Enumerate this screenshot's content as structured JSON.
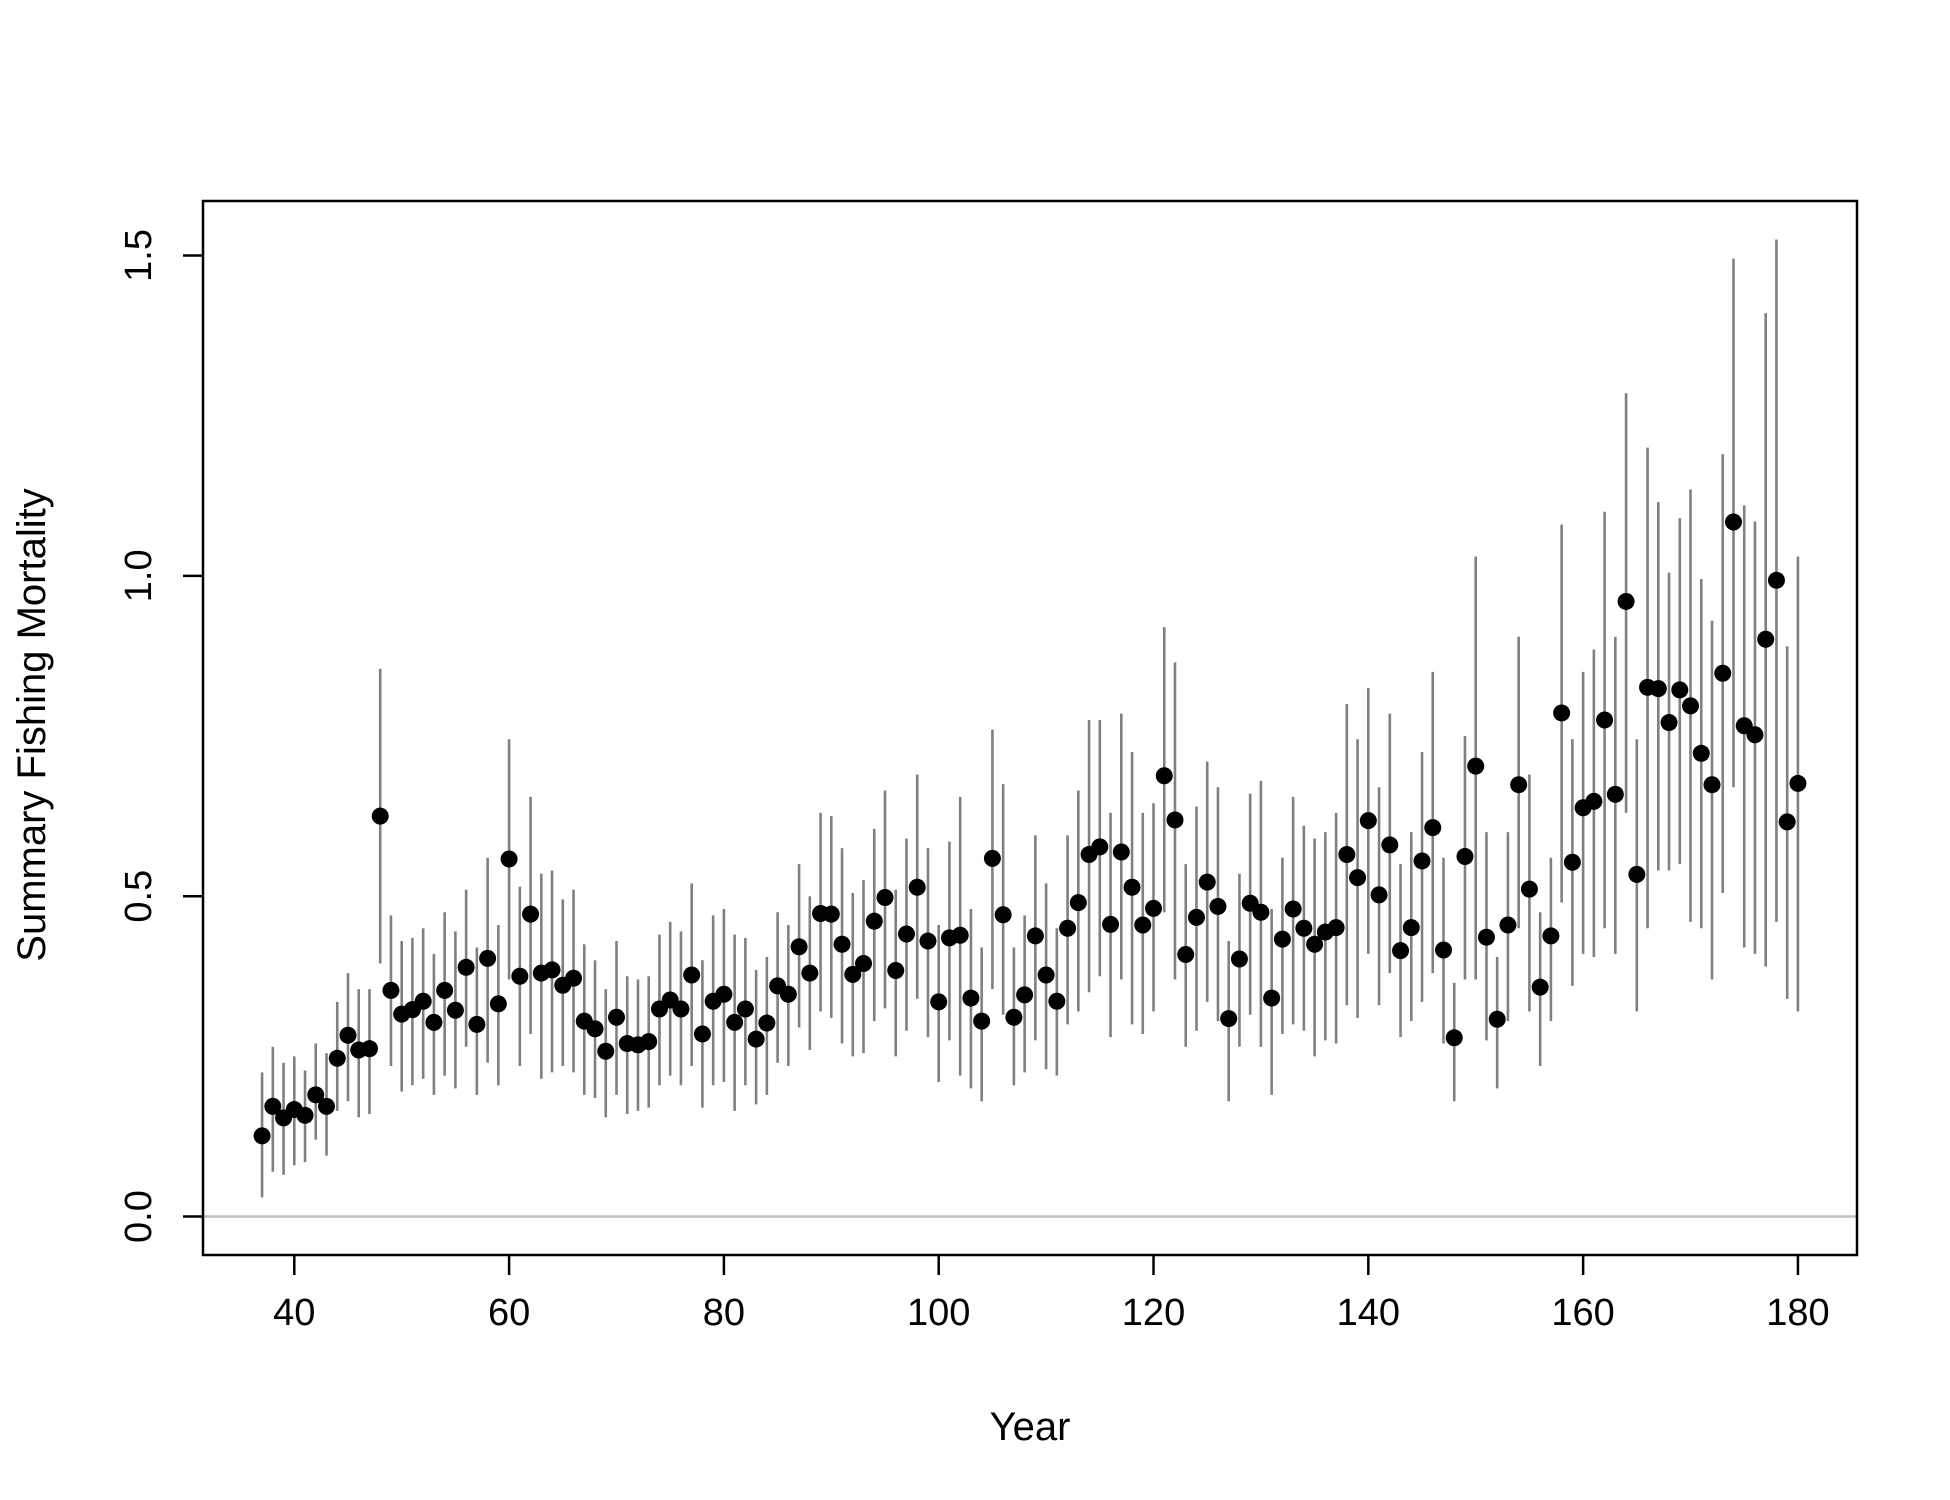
{
  "chart_data": {
    "type": "scatter",
    "title": "",
    "xlabel": "Year",
    "ylabel": "Summary Fishing Mortality",
    "xlim": [
      31.5,
      185.5
    ],
    "ylim": [
      -0.06,
      1.585
    ],
    "xticks": [
      40,
      60,
      80,
      100,
      120,
      140,
      160,
      180
    ],
    "yticks": [
      0.0,
      0.5,
      1.0,
      1.5
    ],
    "xtick_labels": [
      "40",
      "60",
      "80",
      "100",
      "120",
      "140",
      "160",
      "180"
    ],
    "ytick_labels": [
      "0.0",
      "0.5",
      "1.0",
      "1.5"
    ],
    "reference_line": 0.0,
    "grid": false,
    "colors": {
      "point": "#000000",
      "error_bar": "#808080",
      "reference_line": "#c0c0c0",
      "frame": "#000000"
    },
    "x": [
      37,
      38,
      39,
      40,
      41,
      42,
      43,
      44,
      45,
      46,
      47,
      48,
      49,
      50,
      51,
      52,
      53,
      54,
      55,
      56,
      57,
      58,
      59,
      60,
      61,
      62,
      63,
      64,
      65,
      66,
      67,
      68,
      69,
      70,
      71,
      72,
      73,
      74,
      75,
      76,
      77,
      78,
      79,
      80,
      81,
      82,
      83,
      84,
      85,
      86,
      87,
      88,
      89,
      90,
      91,
      92,
      93,
      94,
      95,
      96,
      97,
      98,
      99,
      100,
      101,
      102,
      103,
      104,
      105,
      106,
      107,
      108,
      109,
      110,
      111,
      112,
      113,
      114,
      115,
      116,
      117,
      118,
      119,
      120,
      121,
      122,
      123,
      124,
      125,
      126,
      127,
      128,
      129,
      130,
      131,
      132,
      133,
      134,
      135,
      136,
      137,
      138,
      139,
      140,
      141,
      142,
      143,
      144,
      145,
      146,
      147,
      148,
      149,
      150,
      151,
      152,
      153,
      154,
      155,
      156,
      157,
      158,
      159,
      160,
      161,
      162,
      163,
      164,
      165,
      166,
      167,
      168,
      169,
      170,
      171,
      172,
      173,
      174,
      175,
      176,
      177,
      178,
      179,
      180
    ],
    "y": [
      0.126,
      0.172,
      0.154,
      0.167,
      0.158,
      0.19,
      0.172,
      0.247,
      0.283,
      0.26,
      0.262,
      0.625,
      0.353,
      0.316,
      0.323,
      0.336,
      0.303,
      0.353,
      0.322,
      0.389,
      0.3,
      0.403,
      0.332,
      0.558,
      0.375,
      0.472,
      0.38,
      0.385,
      0.361,
      0.372,
      0.305,
      0.293,
      0.258,
      0.311,
      0.27,
      0.268,
      0.273,
      0.324,
      0.338,
      0.324,
      0.377,
      0.285,
      0.336,
      0.347,
      0.303,
      0.324,
      0.277,
      0.302,
      0.36,
      0.347,
      0.421,
      0.38,
      0.473,
      0.472,
      0.425,
      0.378,
      0.395,
      0.461,
      0.498,
      0.384,
      0.441,
      0.514,
      0.43,
      0.335,
      0.435,
      0.439,
      0.341,
      0.305,
      0.559,
      0.471,
      0.311,
      0.346,
      0.438,
      0.377,
      0.336,
      0.45,
      0.49,
      0.565,
      0.577,
      0.456,
      0.569,
      0.514,
      0.455,
      0.481,
      0.688,
      0.619,
      0.409,
      0.467,
      0.522,
      0.484,
      0.309,
      0.402,
      0.489,
      0.475,
      0.341,
      0.433,
      0.48,
      0.45,
      0.425,
      0.444,
      0.451,
      0.565,
      0.529,
      0.618,
      0.502,
      0.58,
      0.415,
      0.451,
      0.555,
      0.607,
      0.416,
      0.279,
      0.562,
      0.703,
      0.436,
      0.308,
      0.455,
      0.674,
      0.511,
      0.358,
      0.438,
      0.786,
      0.553,
      0.638,
      0.648,
      0.775,
      0.659,
      0.96,
      0.534,
      0.826,
      0.824,
      0.771,
      0.822,
      0.797,
      0.723,
      0.674,
      0.848,
      1.084,
      0.766,
      0.752,
      0.901,
      0.993,
      0.616,
      0.676
    ],
    "y_low": [
      0.03,
      0.07,
      0.065,
      0.08,
      0.085,
      0.12,
      0.095,
      0.165,
      0.18,
      0.155,
      0.16,
      0.395,
      0.235,
      0.195,
      0.205,
      0.215,
      0.19,
      0.22,
      0.2,
      0.265,
      0.19,
      0.24,
      0.205,
      0.37,
      0.235,
      0.285,
      0.215,
      0.225,
      0.235,
      0.225,
      0.19,
      0.185,
      0.155,
      0.19,
      0.16,
      0.165,
      0.17,
      0.205,
      0.22,
      0.205,
      0.235,
      0.17,
      0.205,
      0.21,
      0.165,
      0.205,
      0.175,
      0.19,
      0.24,
      0.235,
      0.295,
      0.26,
      0.32,
      0.31,
      0.27,
      0.25,
      0.255,
      0.305,
      0.325,
      0.25,
      0.29,
      0.34,
      0.28,
      0.21,
      0.275,
      0.22,
      0.2,
      0.18,
      0.355,
      0.315,
      0.205,
      0.225,
      0.275,
      0.23,
      0.22,
      0.3,
      0.32,
      0.35,
      0.375,
      0.28,
      0.37,
      0.3,
      0.285,
      0.32,
      0.475,
      0.37,
      0.265,
      0.29,
      0.335,
      0.305,
      0.18,
      0.265,
      0.315,
      0.265,
      0.19,
      0.285,
      0.3,
      0.29,
      0.25,
      0.275,
      0.27,
      0.33,
      0.31,
      0.41,
      0.33,
      0.38,
      0.28,
      0.305,
      0.335,
      0.38,
      0.27,
      0.18,
      0.37,
      0.37,
      0.275,
      0.2,
      0.305,
      0.45,
      0.32,
      0.235,
      0.305,
      0.49,
      0.36,
      0.41,
      0.405,
      0.45,
      0.41,
      0.63,
      0.32,
      0.45,
      0.54,
      0.54,
      0.55,
      0.46,
      0.45,
      0.37,
      0.505,
      0.67,
      0.42,
      0.41,
      0.39,
      0.46,
      0.34,
      0.32
    ],
    "y_high": [
      0.225,
      0.265,
      0.24,
      0.25,
      0.228,
      0.27,
      0.255,
      0.335,
      0.38,
      0.355,
      0.355,
      0.855,
      0.47,
      0.43,
      0.435,
      0.45,
      0.41,
      0.475,
      0.445,
      0.51,
      0.42,
      0.56,
      0.455,
      0.745,
      0.515,
      0.655,
      0.535,
      0.54,
      0.495,
      0.51,
      0.425,
      0.4,
      0.355,
      0.43,
      0.375,
      0.37,
      0.375,
      0.44,
      0.46,
      0.445,
      0.52,
      0.4,
      0.47,
      0.48,
      0.44,
      0.435,
      0.385,
      0.405,
      0.475,
      0.455,
      0.55,
      0.5,
      0.63,
      0.625,
      0.575,
      0.505,
      0.525,
      0.605,
      0.665,
      0.51,
      0.59,
      0.69,
      0.575,
      0.455,
      0.585,
      0.655,
      0.48,
      0.42,
      0.76,
      0.675,
      0.42,
      0.47,
      0.595,
      0.52,
      0.45,
      0.595,
      0.665,
      0.775,
      0.775,
      0.63,
      0.785,
      0.725,
      0.63,
      0.645,
      0.92,
      0.865,
      0.55,
      0.64,
      0.71,
      0.67,
      0.43,
      0.535,
      0.66,
      0.68,
      0.48,
      0.56,
      0.655,
      0.61,
      0.59,
      0.6,
      0.63,
      0.8,
      0.745,
      0.825,
      0.67,
      0.785,
      0.55,
      0.6,
      0.725,
      0.85,
      0.56,
      0.365,
      0.75,
      1.03,
      0.6,
      0.405,
      0.6,
      0.905,
      0.69,
      0.475,
      0.56,
      1.08,
      0.745,
      0.85,
      0.885,
      1.1,
      0.905,
      1.285,
      0.745,
      1.2,
      1.115,
      1.005,
      1.09,
      1.135,
      0.995,
      0.93,
      1.19,
      1.495,
      1.11,
      1.085,
      1.41,
      1.525,
      0.89,
      1.03
    ]
  }
}
